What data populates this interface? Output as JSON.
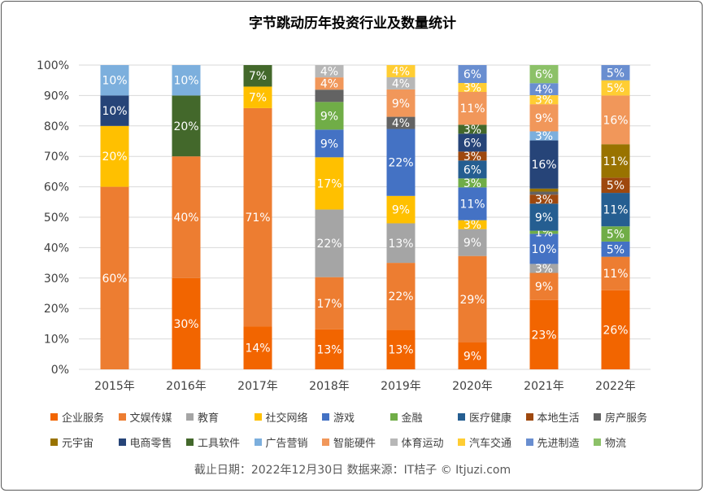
{
  "chart_data": {
    "type": "bar",
    "stacked": "percent",
    "title": "字节跳动历年投资行业及数量统计",
    "categories": [
      "2015年",
      "2016年",
      "2017年",
      "2018年",
      "2019年",
      "2020年",
      "2021年",
      "2022年"
    ],
    "ylim": [
      0,
      100
    ],
    "yticks": [
      "0%",
      "10%",
      "20%",
      "30%",
      "40%",
      "50%",
      "60%",
      "70%",
      "80%",
      "90%",
      "100%"
    ],
    "grid": true,
    "legend_position": "bottom",
    "series": [
      {
        "name": "企业服务",
        "color": "#F26500",
        "values": [
          0,
          30,
          14,
          13,
          13,
          9,
          23,
          26
        ]
      },
      {
        "name": "文娱传媒",
        "color": "#ED7D31",
        "values": [
          60,
          40,
          71,
          17,
          22,
          29,
          9,
          11
        ]
      },
      {
        "name": "教育",
        "color": "#A5A5A5",
        "values": [
          0,
          0,
          0,
          22,
          13,
          9,
          3,
          0
        ]
      },
      {
        "name": "社交网络",
        "color": "#FFC000",
        "values": [
          20,
          0,
          7,
          17,
          9,
          3,
          0,
          0
        ]
      },
      {
        "name": "游戏",
        "color": "#4472C4",
        "values": [
          0,
          0,
          0,
          9,
          22,
          11,
          10,
          5
        ]
      },
      {
        "name": "金融",
        "color": "#70AD47",
        "values": [
          0,
          0,
          0,
          9,
          0,
          3,
          1,
          5
        ]
      },
      {
        "name": "医疗健康",
        "color": "#255E91",
        "values": [
          0,
          0,
          0,
          0,
          0,
          6,
          9,
          11
        ]
      },
      {
        "name": "本地生活",
        "color": "#9E480E",
        "values": [
          0,
          0,
          0,
          0,
          0,
          3,
          3,
          5
        ]
      },
      {
        "name": "房产服务",
        "color": "#636363",
        "values": [
          0,
          0,
          0,
          4,
          4,
          0,
          1,
          0
        ]
      },
      {
        "name": "元宇宙",
        "color": "#997300",
        "values": [
          0,
          0,
          0,
          0,
          0,
          0,
          1,
          11
        ]
      },
      {
        "name": "电商零售",
        "color": "#264478",
        "values": [
          10,
          0,
          0,
          0,
          0,
          6,
          16,
          0
        ]
      },
      {
        "name": "工具软件",
        "color": "#43682B",
        "values": [
          0,
          20,
          7,
          0,
          0,
          3,
          0,
          0
        ]
      },
      {
        "name": "广告营销",
        "color": "#7CAFDD",
        "values": [
          10,
          10,
          0,
          0,
          0,
          0,
          3,
          0
        ]
      },
      {
        "name": "智能硬件",
        "color": "#F1975A",
        "values": [
          0,
          0,
          0,
          4,
          9,
          11,
          9,
          16
        ]
      },
      {
        "name": "体育运动",
        "color": "#B7B7B7",
        "values": [
          0,
          0,
          0,
          4,
          4,
          0,
          0,
          0
        ]
      },
      {
        "name": "汽车交通",
        "color": "#FFCD33",
        "values": [
          0,
          0,
          0,
          0,
          4,
          3,
          3,
          5
        ]
      },
      {
        "name": "先进制造",
        "color": "#698ED0",
        "values": [
          0,
          0,
          0,
          0,
          0,
          6,
          4,
          5
        ]
      },
      {
        "name": "物流",
        "color": "#8CC168",
        "values": [
          0,
          0,
          0,
          0,
          0,
          0,
          6,
          0
        ]
      }
    ],
    "unlabeled": [
      [
        "2018年",
        "房产服务"
      ],
      [
        "2021年",
        "房产服务"
      ],
      [
        "2021年",
        "元宇宙"
      ]
    ]
  },
  "footer": "截止日期：2022年12月30日    数据来源：IT桔子 © Itjuzi.com"
}
